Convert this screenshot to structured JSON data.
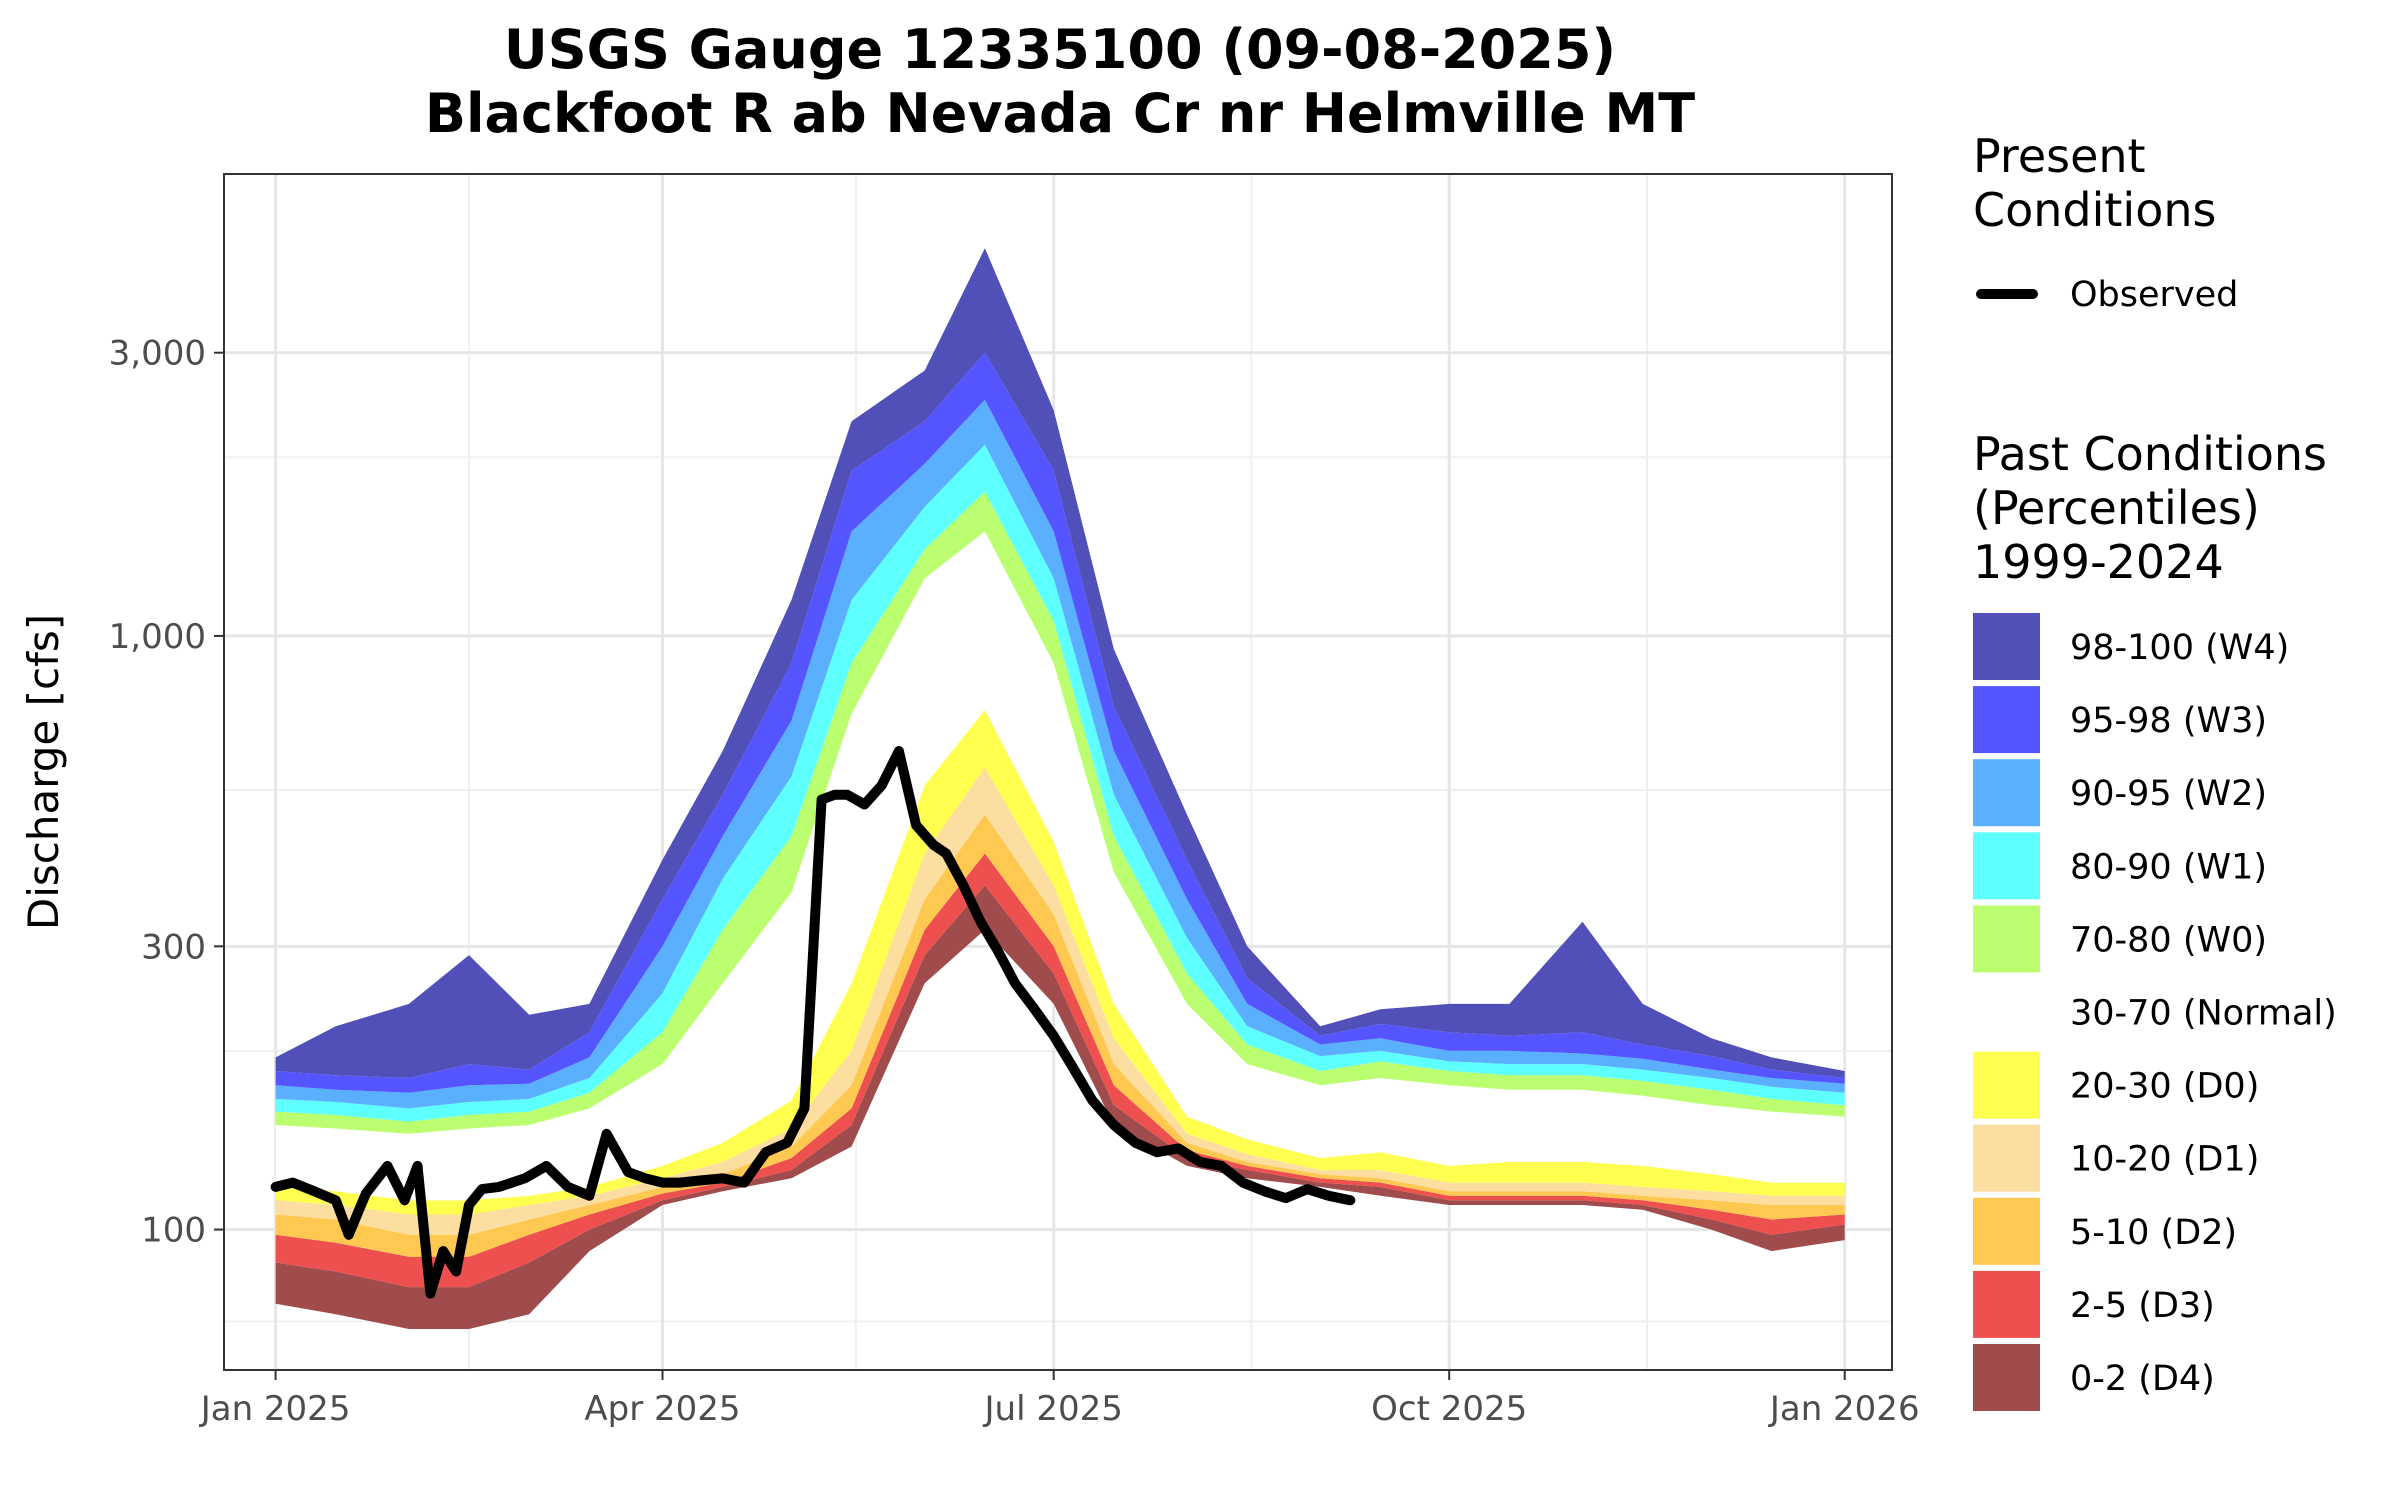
{
  "chart_data": {
    "type": "area",
    "title": "USGS Gauge 12335100 (09-08-2025)",
    "subtitle": "Blackfoot R ab Nevada Cr nr Helmville MT",
    "ylabel": "Discharge [cfs]",
    "xlabel": "",
    "y_scale": "log",
    "ylim": [
      58,
      6000
    ],
    "xlim": [
      "2024-12-20",
      "2026-01-12"
    ],
    "grid": true,
    "legend_position": "right",
    "x_ticks": [
      {
        "date": "2025-01-01",
        "label": "Jan 2025"
      },
      {
        "date": "2025-04-01",
        "label": "Apr 2025"
      },
      {
        "date": "2025-07-01",
        "label": "Jul 2025"
      },
      {
        "date": "2025-10-01",
        "label": "Oct 2025"
      },
      {
        "date": "2026-01-01",
        "label": "Jan 2026"
      }
    ],
    "y_ticks": [
      {
        "value": 100,
        "label": "100"
      },
      {
        "value": 300,
        "label": "300"
      },
      {
        "value": 1000,
        "label": "1,000"
      },
      {
        "value": 3000,
        "label": "3,000"
      }
    ],
    "y_minor_ticks": [
      70,
      200,
      550,
      2000
    ],
    "legend": {
      "present_title": "Present\nConditions",
      "observed_label": "Observed",
      "past_title": "Past Conditions\n(Percentiles)\n1999-2024",
      "past_items": [
        {
          "label": "98-100 (W4)",
          "color": "#5050B8"
        },
        {
          "label": "95-98 (W3)",
          "color": "#5555FF"
        },
        {
          "label": "90-95 (W2)",
          "color": "#5AB0FF"
        },
        {
          "label": "80-90 (W1)",
          "color": "#5DFFFF"
        },
        {
          "label": "70-80 (W0)",
          "color": "#BBFF70"
        },
        {
          "label": "30-70 (Normal)",
          "color": "#FFFFFF"
        },
        {
          "label": "20-30 (D0)",
          "color": "#FFFF50"
        },
        {
          "label": "10-20 (D1)",
          "color": "#FCDEA0"
        },
        {
          "label": "5-10 (D2)",
          "color": "#FFC850"
        },
        {
          "label": "2-5 (D3)",
          "color": "#EE5050"
        },
        {
          "label": "0-2 (D4)",
          "color": "#A04C4C"
        }
      ]
    },
    "band_dates": [
      "2025-01-01",
      "2025-01-15",
      "2025-02-01",
      "2025-02-15",
      "2025-03-01",
      "2025-03-15",
      "2025-04-01",
      "2025-04-15",
      "2025-05-01",
      "2025-05-15",
      "2025-06-01",
      "2025-06-15",
      "2025-07-01",
      "2025-07-15",
      "2025-08-01",
      "2025-08-15",
      "2025-09-01",
      "2025-09-15",
      "2025-10-01",
      "2025-10-15",
      "2025-11-01",
      "2025-11-15",
      "2025-12-01",
      "2025-12-15",
      "2026-01-01"
    ],
    "band_boundaries": {
      "p0": [
        75,
        72,
        68,
        68,
        72,
        92,
        110,
        116,
        122,
        138,
        260,
        320,
        240,
        150,
        128,
        122,
        118,
        114,
        110,
        110,
        110,
        108,
        100,
        92,
        96
      ],
      "p2": [
        88,
        85,
        80,
        80,
        88,
        100,
        112,
        118,
        126,
        150,
        290,
        380,
        270,
        162,
        132,
        126,
        120,
        118,
        112,
        112,
        112,
        110,
        104,
        98,
        102
      ],
      "p5": [
        98,
        95,
        90,
        90,
        98,
        106,
        115,
        120,
        132,
        160,
        320,
        430,
        300,
        175,
        136,
        128,
        122,
        120,
        114,
        114,
        114,
        112,
        108,
        104,
        106
      ],
      "p10": [
        106,
        104,
        98,
        98,
        104,
        110,
        118,
        124,
        138,
        175,
        360,
        500,
        340,
        190,
        140,
        130,
        124,
        122,
        116,
        116,
        116,
        114,
        112,
        110,
        110
      ],
      "p20": [
        112,
        110,
        106,
        106,
        110,
        114,
        122,
        130,
        148,
        200,
        430,
        600,
        380,
        210,
        145,
        134,
        126,
        126,
        120,
        120,
        120,
        118,
        116,
        114,
        114
      ],
      "p30": [
        118,
        116,
        112,
        112,
        114,
        118,
        128,
        140,
        165,
        260,
        560,
        750,
        450,
        240,
        155,
        142,
        132,
        135,
        128,
        130,
        130,
        128,
        124,
        120,
        120
      ],
      "p70": [
        150,
        148,
        145,
        148,
        150,
        160,
        190,
        260,
        370,
        740,
        1250,
        1500,
        900,
        400,
        240,
        190,
        175,
        180,
        175,
        172,
        172,
        168,
        162,
        158,
        155
      ],
      "p80": [
        158,
        156,
        152,
        156,
        158,
        170,
        215,
        320,
        460,
        900,
        1400,
        1750,
        1060,
        460,
        270,
        205,
        185,
        192,
        185,
        182,
        182,
        178,
        172,
        166,
        162
      ],
      "p90": [
        166,
        164,
        160,
        164,
        166,
        180,
        250,
        390,
        580,
        1150,
        1650,
        2100,
        1250,
        540,
        310,
        220,
        196,
        200,
        192,
        190,
        190,
        186,
        180,
        174,
        170
      ],
      "p95": [
        175,
        172,
        170,
        175,
        176,
        195,
        300,
        460,
        720,
        1500,
        1950,
        2500,
        1500,
        640,
        360,
        240,
        205,
        210,
        200,
        200,
        198,
        194,
        186,
        180,
        176
      ],
      "p98": [
        185,
        182,
        180,
        190,
        186,
        215,
        360,
        540,
        900,
        1900,
        2300,
        3000,
        1900,
        760,
        420,
        265,
        212,
        222,
        215,
        212,
        215,
        205,
        196,
        186,
        180
      ],
      "p100": [
        195,
        220,
        240,
        290,
        230,
        240,
        420,
        640,
        1150,
        2300,
        2800,
        4500,
        2400,
        950,
        500,
        300,
        220,
        235,
        240,
        240,
        330,
        240,
        210,
        195,
        185
      ]
    },
    "series": [
      {
        "name": "Observed",
        "color": "#000000",
        "x": [
          "2025-01-01",
          "2025-01-05",
          "2025-01-10",
          "2025-01-15",
          "2025-01-18",
          "2025-01-22",
          "2025-01-27",
          "2025-01-31",
          "2025-02-03",
          "2025-02-06",
          "2025-02-09",
          "2025-02-12",
          "2025-02-15",
          "2025-02-18",
          "2025-02-22",
          "2025-02-28",
          "2025-03-05",
          "2025-03-10",
          "2025-03-15",
          "2025-03-19",
          "2025-03-24",
          "2025-03-28",
          "2025-04-01",
          "2025-04-05",
          "2025-04-10",
          "2025-04-15",
          "2025-04-20",
          "2025-04-25",
          "2025-04-30",
          "2025-05-04",
          "2025-05-08",
          "2025-05-11",
          "2025-05-14",
          "2025-05-18",
          "2025-05-22",
          "2025-05-26",
          "2025-05-30",
          "2025-06-03",
          "2025-06-06",
          "2025-06-10",
          "2025-06-14",
          "2025-06-18",
          "2025-06-22",
          "2025-06-26",
          "2025-07-01",
          "2025-07-05",
          "2025-07-10",
          "2025-07-15",
          "2025-07-20",
          "2025-07-25",
          "2025-07-30",
          "2025-08-04",
          "2025-08-09",
          "2025-08-14",
          "2025-08-19",
          "2025-08-24",
          "2025-08-29",
          "2025-09-03",
          "2025-09-08"
        ],
        "y": [
          118,
          120,
          116,
          112,
          98,
          115,
          128,
          112,
          128,
          78,
          92,
          85,
          110,
          117,
          118,
          122,
          128,
          118,
          114,
          145,
          125,
          122,
          120,
          120,
          121,
          122,
          120,
          135,
          140,
          160,
          530,
          540,
          540,
          520,
          560,
          640,
          480,
          445,
          430,
          380,
          330,
          295,
          260,
          238,
          212,
          190,
          165,
          150,
          140,
          135,
          137,
          130,
          128,
          120,
          116,
          113,
          117,
          114,
          112
        ]
      }
    ]
  }
}
